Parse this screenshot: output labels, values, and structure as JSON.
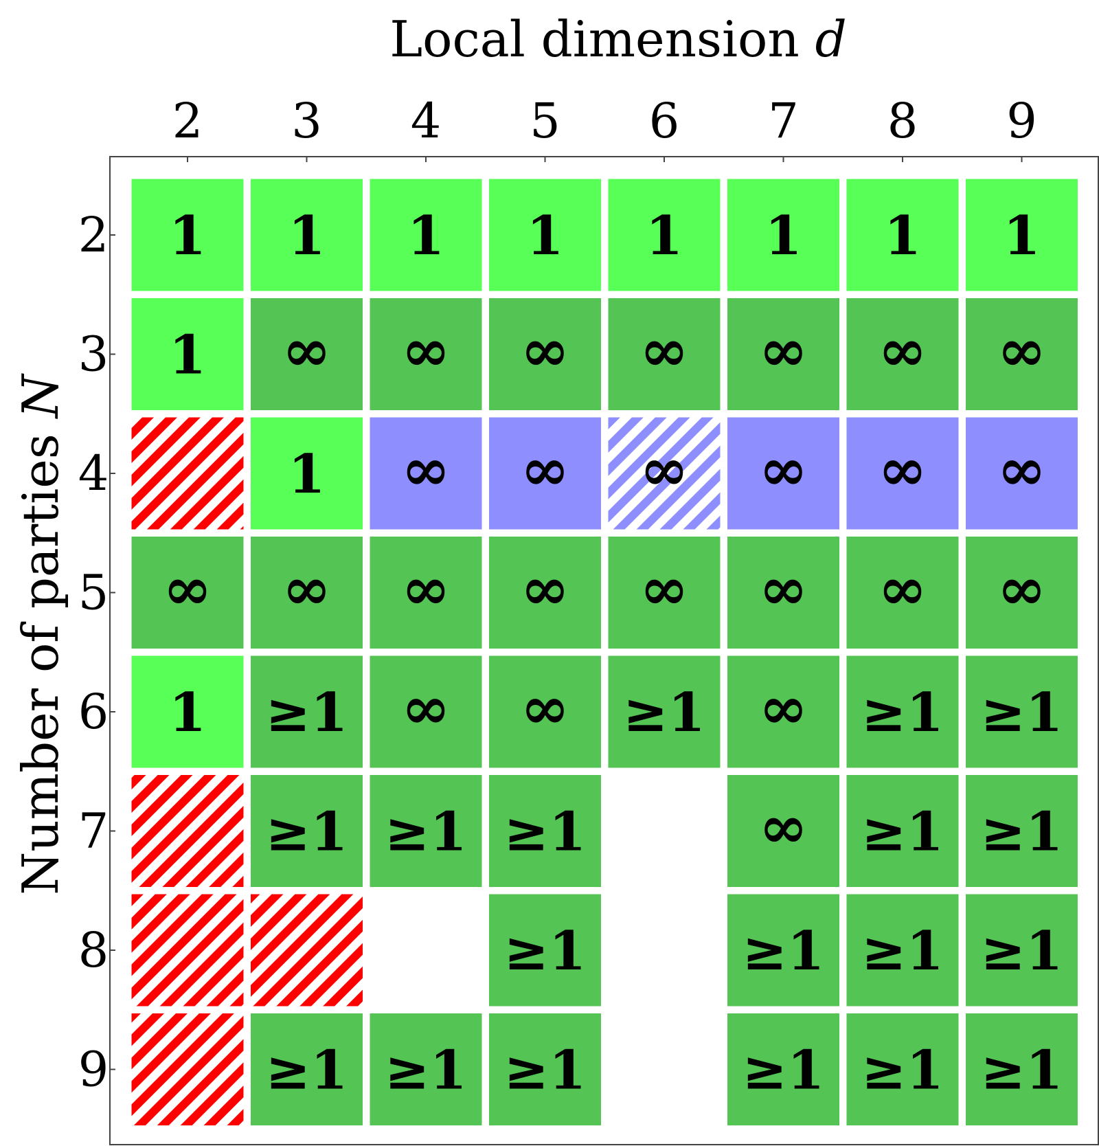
{
  "chart_data": {
    "type": "heatmap",
    "xlabel_text": "Local dimension ",
    "xlabel_var": "d",
    "ylabel_text": "Number of parties ",
    "ylabel_var": "N",
    "x_ticks": [
      "2",
      "3",
      "4",
      "5",
      "6",
      "7",
      "8",
      "9"
    ],
    "y_ticks": [
      "2",
      "3",
      "4",
      "5",
      "6",
      "7",
      "8",
      "9"
    ],
    "colors": {
      "bright_green": "#57ff57",
      "green": "#54c454",
      "blue": "#8e8eff",
      "red_hatch": "#ff0000",
      "text": "#000000"
    },
    "cells": [
      [
        {
          "label": "1",
          "style": "bright_green"
        },
        {
          "label": "1",
          "style": "bright_green"
        },
        {
          "label": "1",
          "style": "bright_green"
        },
        {
          "label": "1",
          "style": "bright_green"
        },
        {
          "label": "1",
          "style": "bright_green"
        },
        {
          "label": "1",
          "style": "bright_green"
        },
        {
          "label": "1",
          "style": "bright_green"
        },
        {
          "label": "1",
          "style": "bright_green"
        }
      ],
      [
        {
          "label": "1",
          "style": "bright_green"
        },
        {
          "label": "∞",
          "style": "green"
        },
        {
          "label": "∞",
          "style": "green"
        },
        {
          "label": "∞",
          "style": "green"
        },
        {
          "label": "∞",
          "style": "green"
        },
        {
          "label": "∞",
          "style": "green"
        },
        {
          "label": "∞",
          "style": "green"
        },
        {
          "label": "∞",
          "style": "green"
        }
      ],
      [
        {
          "label": "",
          "style": "red_hatch"
        },
        {
          "label": "1",
          "style": "bright_green"
        },
        {
          "label": "∞",
          "style": "blue"
        },
        {
          "label": "∞",
          "style": "blue"
        },
        {
          "label": "∞",
          "style": "blue_hatch"
        },
        {
          "label": "∞",
          "style": "blue"
        },
        {
          "label": "∞",
          "style": "blue"
        },
        {
          "label": "∞",
          "style": "blue"
        }
      ],
      [
        {
          "label": "∞",
          "style": "green"
        },
        {
          "label": "∞",
          "style": "green"
        },
        {
          "label": "∞",
          "style": "green"
        },
        {
          "label": "∞",
          "style": "green"
        },
        {
          "label": "∞",
          "style": "green"
        },
        {
          "label": "∞",
          "style": "green"
        },
        {
          "label": "∞",
          "style": "green"
        },
        {
          "label": "∞",
          "style": "green"
        }
      ],
      [
        {
          "label": "1",
          "style": "bright_green"
        },
        {
          "label": "≥1",
          "style": "green"
        },
        {
          "label": "∞",
          "style": "green"
        },
        {
          "label": "∞",
          "style": "green"
        },
        {
          "label": "≥1",
          "style": "green"
        },
        {
          "label": "∞",
          "style": "green"
        },
        {
          "label": "≥1",
          "style": "green"
        },
        {
          "label": "≥1",
          "style": "green"
        }
      ],
      [
        {
          "label": "",
          "style": "red_hatch"
        },
        {
          "label": "≥1",
          "style": "green"
        },
        {
          "label": "≥1",
          "style": "green"
        },
        {
          "label": "≥1",
          "style": "green"
        },
        {
          "label": "",
          "style": "empty"
        },
        {
          "label": "∞",
          "style": "green"
        },
        {
          "label": "≥1",
          "style": "green"
        },
        {
          "label": "≥1",
          "style": "green"
        }
      ],
      [
        {
          "label": "",
          "style": "red_hatch"
        },
        {
          "label": "",
          "style": "red_hatch"
        },
        {
          "label": "",
          "style": "empty"
        },
        {
          "label": "≥1",
          "style": "green"
        },
        {
          "label": "",
          "style": "empty"
        },
        {
          "label": "≥1",
          "style": "green"
        },
        {
          "label": "≥1",
          "style": "green"
        },
        {
          "label": "≥1",
          "style": "green"
        }
      ],
      [
        {
          "label": "",
          "style": "red_hatch"
        },
        {
          "label": "≥1",
          "style": "green"
        },
        {
          "label": "≥1",
          "style": "green"
        },
        {
          "label": "≥1",
          "style": "green"
        },
        {
          "label": "",
          "style": "empty"
        },
        {
          "label": "≥1",
          "style": "green"
        },
        {
          "label": "≥1",
          "style": "green"
        },
        {
          "label": "≥1",
          "style": "green"
        }
      ]
    ]
  }
}
